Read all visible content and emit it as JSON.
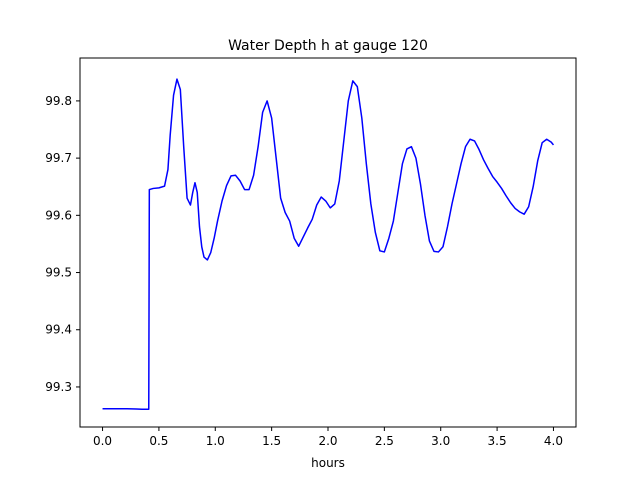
{
  "chart_data": {
    "type": "line",
    "title": "Water Depth h at gauge 120",
    "xlabel": "hours",
    "ylabel": "",
    "xlim": [
      -0.2,
      4.2
    ],
    "ylim": [
      99.23,
      99.875
    ],
    "xticks": [
      0.0,
      0.5,
      1.0,
      1.5,
      2.0,
      2.5,
      3.0,
      3.5,
      4.0
    ],
    "xtick_labels": [
      "0.0",
      "0.5",
      "1.0",
      "1.5",
      "2.0",
      "2.5",
      "3.0",
      "3.5",
      "4.0"
    ],
    "yticks": [
      99.3,
      99.4,
      99.5,
      99.6,
      99.7,
      99.8
    ],
    "ytick_labels": [
      "99.3",
      "99.4",
      "99.5",
      "99.6",
      "99.7",
      "99.8"
    ],
    "grid": false,
    "series": [
      {
        "color": "#0000ff",
        "x": [
          0.0,
          0.1,
          0.2,
          0.3,
          0.35,
          0.38,
          0.41,
          0.415,
          0.45,
          0.5,
          0.55,
          0.58,
          0.6,
          0.63,
          0.66,
          0.69,
          0.72,
          0.75,
          0.78,
          0.8,
          0.82,
          0.84,
          0.86,
          0.88,
          0.9,
          0.93,
          0.96,
          0.99,
          1.02,
          1.06,
          1.1,
          1.14,
          1.18,
          1.22,
          1.26,
          1.3,
          1.34,
          1.38,
          1.42,
          1.46,
          1.5,
          1.54,
          1.58,
          1.62,
          1.66,
          1.7,
          1.74,
          1.78,
          1.82,
          1.86,
          1.9,
          1.94,
          1.98,
          2.02,
          2.06,
          2.1,
          2.14,
          2.18,
          2.22,
          2.26,
          2.3,
          2.34,
          2.38,
          2.42,
          2.46,
          2.5,
          2.54,
          2.58,
          2.62,
          2.66,
          2.7,
          2.74,
          2.78,
          2.82,
          2.86,
          2.9,
          2.94,
          2.98,
          3.02,
          3.06,
          3.1,
          3.14,
          3.18,
          3.22,
          3.26,
          3.3,
          3.34,
          3.38,
          3.42,
          3.46,
          3.5,
          3.54,
          3.58,
          3.62,
          3.66,
          3.7,
          3.74,
          3.78,
          3.82,
          3.86,
          3.9,
          3.94,
          3.98,
          4.0
        ],
        "y": [
          99.262,
          99.262,
          99.262,
          99.2615,
          99.261,
          99.261,
          99.261,
          99.645,
          99.647,
          99.648,
          99.651,
          99.68,
          99.74,
          99.81,
          99.838,
          99.82,
          99.72,
          99.63,
          99.618,
          99.64,
          99.657,
          99.64,
          99.58,
          99.545,
          99.527,
          99.522,
          99.535,
          99.56,
          99.59,
          99.625,
          99.652,
          99.669,
          99.67,
          99.66,
          99.645,
          99.645,
          99.67,
          99.72,
          99.78,
          99.8,
          99.77,
          99.7,
          99.63,
          99.605,
          99.59,
          99.56,
          99.546,
          99.562,
          99.578,
          99.593,
          99.618,
          99.632,
          99.625,
          99.613,
          99.62,
          99.66,
          99.73,
          99.8,
          99.835,
          99.825,
          99.77,
          99.69,
          99.62,
          99.57,
          99.538,
          99.536,
          99.56,
          99.59,
          99.64,
          99.69,
          99.716,
          99.72,
          99.7,
          99.655,
          99.6,
          99.555,
          99.537,
          99.536,
          99.545,
          99.58,
          99.62,
          99.655,
          99.69,
          99.72,
          99.733,
          99.73,
          99.715,
          99.697,
          99.682,
          99.668,
          99.658,
          99.647,
          99.634,
          99.622,
          99.612,
          99.606,
          99.602,
          99.615,
          99.65,
          99.695,
          99.727,
          99.733,
          99.728,
          99.723
        ]
      }
    ]
  }
}
